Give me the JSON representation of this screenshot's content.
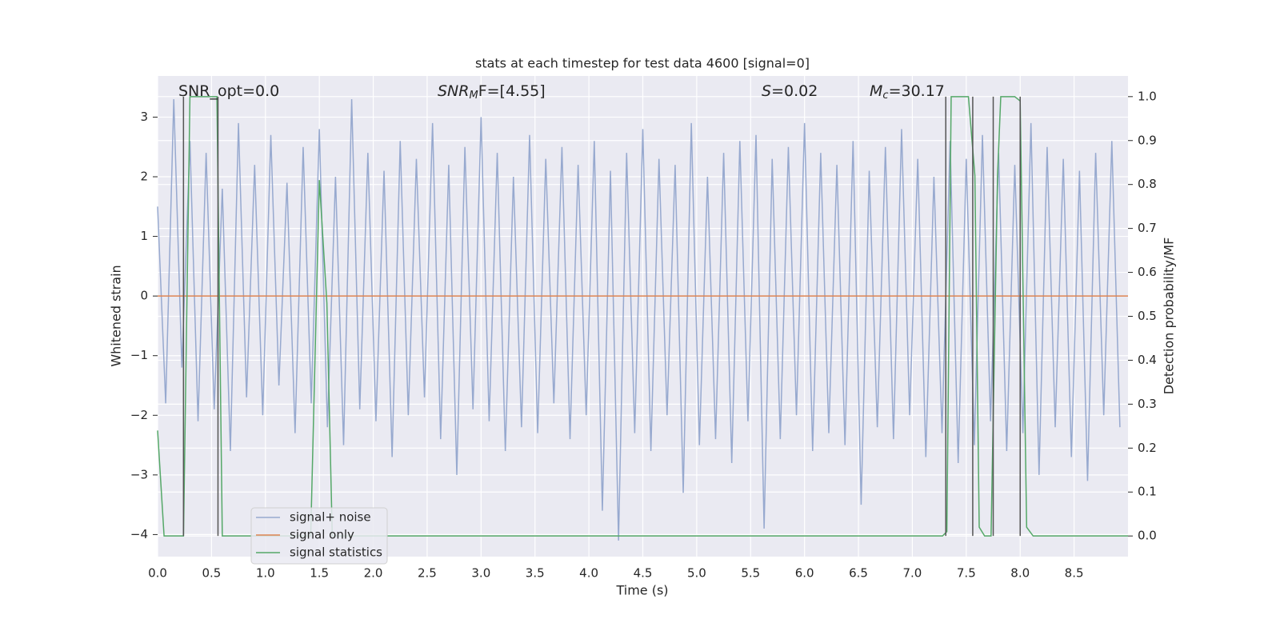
{
  "chart_data": {
    "type": "line",
    "title": "stats at each timestep for test data 4600 [signal=0]",
    "xlabel": "Time (s)",
    "ylabel": "Whitened strain",
    "y2label": "Detection probability/MF",
    "xlim": [
      0,
      9.0
    ],
    "ylim": [
      -4.37,
      3.69
    ],
    "y2lim": [
      -0.047,
      1.047
    ],
    "xticks": [
      {
        "value": 0,
        "label": "0.0"
      },
      {
        "value": 0.5,
        "label": "0.5"
      },
      {
        "value": 1,
        "label": "1.0"
      },
      {
        "value": 1.5,
        "label": "1.5"
      },
      {
        "value": 2,
        "label": "2.0"
      },
      {
        "value": 2.5,
        "label": "2.5"
      },
      {
        "value": 3,
        "label": "3.0"
      },
      {
        "value": 3.5,
        "label": "3.5"
      },
      {
        "value": 4,
        "label": "4.0"
      },
      {
        "value": 4.5,
        "label": "4.5"
      },
      {
        "value": 5,
        "label": "5.0"
      },
      {
        "value": 5.5,
        "label": "5.5"
      },
      {
        "value": 6,
        "label": "6.0"
      },
      {
        "value": 6.5,
        "label": "6.5"
      },
      {
        "value": 7,
        "label": "7.0"
      },
      {
        "value": 7.5,
        "label": "7.5"
      },
      {
        "value": 8,
        "label": "8.0"
      },
      {
        "value": 8.5,
        "label": "8.5"
      }
    ],
    "yticks": [
      {
        "value": -4,
        "label": "−4"
      },
      {
        "value": -3,
        "label": "−3"
      },
      {
        "value": -2,
        "label": "−2"
      },
      {
        "value": -1,
        "label": "−1"
      },
      0,
      1,
      2,
      3
    ],
    "y2ticks": [
      {
        "value": 0,
        "label": "0.0"
      },
      {
        "value": 0.1,
        "label": "0.1"
      },
      {
        "value": 0.2,
        "label": "0.2"
      },
      {
        "value": 0.3,
        "label": "0.3"
      },
      {
        "value": 0.4,
        "label": "0.4"
      },
      {
        "value": 0.5,
        "label": "0.5"
      },
      {
        "value": 0.6,
        "label": "0.6"
      },
      {
        "value": 0.7,
        "label": "0.7"
      },
      {
        "value": 0.8,
        "label": "0.8"
      },
      {
        "value": 0.9,
        "label": "0.9"
      },
      {
        "value": 1,
        "label": "1.0"
      }
    ],
    "grid": true,
    "legend_loc": "lower left",
    "annotations": [
      {
        "main": "SNR_opt=0.0"
      },
      {
        "main": "SNR",
        "sub": "M",
        "tail": "F=[4.55]"
      },
      {
        "main": "S",
        "tail": "=0.02"
      },
      {
        "main": "M",
        "sub": "c",
        "tail": "=30.17"
      }
    ],
    "vlines": {
      "x": [
        0.24,
        0.56,
        7.31,
        7.56,
        7.75,
        8.0
      ],
      "ymin": 0,
      "ymax": 1,
      "color": "#555555"
    },
    "series": [
      {
        "name": "signal+ noise",
        "color": "#97a9cf",
        "x": [
          0,
          0.075,
          0.15,
          0.225,
          0.3,
          0.375,
          0.45,
          0.525,
          0.6,
          0.675,
          0.75,
          0.825,
          0.9,
          0.975,
          1.05,
          1.125,
          1.2,
          1.275,
          1.35,
          1.425,
          1.5,
          1.575,
          1.65,
          1.725,
          1.8,
          1.875,
          1.95,
          2.025,
          2.1,
          2.175,
          2.25,
          2.325,
          2.4,
          2.475,
          2.55,
          2.625,
          2.7,
          2.775,
          2.85,
          2.925,
          3.0,
          3.075,
          3.15,
          3.225,
          3.3,
          3.375,
          3.45,
          3.525,
          3.6,
          3.675,
          3.75,
          3.825,
          3.9,
          3.975,
          4.05,
          4.125,
          4.2,
          4.275,
          4.35,
          4.425,
          4.5,
          4.575,
          4.65,
          4.725,
          4.8,
          4.875,
          4.95,
          5.025,
          5.1,
          5.175,
          5.25,
          5.325,
          5.4,
          5.475,
          5.55,
          5.625,
          5.7,
          5.775,
          5.85,
          5.925,
          6.0,
          6.075,
          6.15,
          6.225,
          6.3,
          6.375,
          6.45,
          6.525,
          6.6,
          6.675,
          6.75,
          6.825,
          6.9,
          6.975,
          7.05,
          7.125,
          7.2,
          7.275,
          7.35,
          7.425,
          7.5,
          7.575,
          7.65,
          7.725,
          7.8,
          7.875,
          7.95,
          8.025,
          8.1,
          8.175,
          8.25,
          8.325,
          8.4,
          8.475,
          8.55,
          8.625,
          8.7,
          8.775,
          8.85,
          8.925
        ],
        "values": [
          1.5,
          -1.8,
          3.3,
          -1.2,
          2.6,
          -2.1,
          2.4,
          -1.9,
          1.8,
          -2.6,
          2.9,
          -1.7,
          2.2,
          -2.0,
          2.7,
          -1.5,
          1.9,
          -2.3,
          2.5,
          -1.8,
          2.8,
          -2.2,
          2.0,
          -2.5,
          3.3,
          -1.9,
          2.4,
          -2.1,
          2.1,
          -2.7,
          2.6,
          -2.0,
          2.3,
          -1.7,
          2.9,
          -2.4,
          2.2,
          -3.0,
          2.5,
          -1.9,
          3.0,
          -2.1,
          2.4,
          -2.6,
          2.0,
          -2.2,
          2.7,
          -2.3,
          2.3,
          -1.8,
          2.5,
          -2.4,
          2.2,
          -2.0,
          2.6,
          -3.6,
          2.1,
          -4.1,
          2.4,
          -2.3,
          2.8,
          -2.6,
          2.3,
          -2.0,
          2.2,
          -3.3,
          2.9,
          -2.5,
          2.0,
          -2.4,
          2.4,
          -2.8,
          2.6,
          -2.1,
          2.7,
          -3.9,
          2.3,
          -2.4,
          2.5,
          -2.0,
          2.9,
          -2.6,
          2.4,
          -2.3,
          2.2,
          -2.5,
          2.6,
          -3.5,
          2.1,
          -2.2,
          2.5,
          -2.4,
          2.8,
          -2.0,
          2.3,
          -2.7,
          2.0,
          -2.3,
          2.6,
          -2.8,
          2.3,
          -2.5,
          2.7,
          -2.1,
          2.4,
          -2.6,
          2.2,
          -2.3,
          2.9,
          -3.0,
          2.5,
          -2.2,
          2.3,
          -2.7,
          2.1,
          -3.1,
          2.4,
          -2.0,
          2.6,
          -2.2
        ]
      },
      {
        "name": "signal only",
        "color": "#dd8452",
        "x": [
          0,
          9.0
        ],
        "values": [
          0,
          0
        ]
      },
      {
        "name": "signal statistics",
        "color": "#55a868",
        "axis": "y2",
        "x": [
          0,
          0.06,
          0.24,
          0.3,
          0.55,
          0.6,
          0.7,
          1.42,
          1.5,
          1.57,
          1.62,
          7.28,
          7.32,
          7.36,
          7.52,
          7.58,
          7.62,
          7.67,
          7.73,
          7.79,
          7.82,
          7.9,
          7.95,
          8.0,
          8.06,
          8.12,
          9.0
        ],
        "values": [
          0.24,
          0,
          0,
          1.0,
          1.0,
          0,
          0,
          0,
          0.81,
          0.53,
          0,
          0,
          0.01,
          1.0,
          1.0,
          0.82,
          0.02,
          0,
          0,
          0.82,
          1.0,
          1.0,
          1.0,
          0.99,
          0.02,
          0,
          0
        ]
      }
    ]
  }
}
